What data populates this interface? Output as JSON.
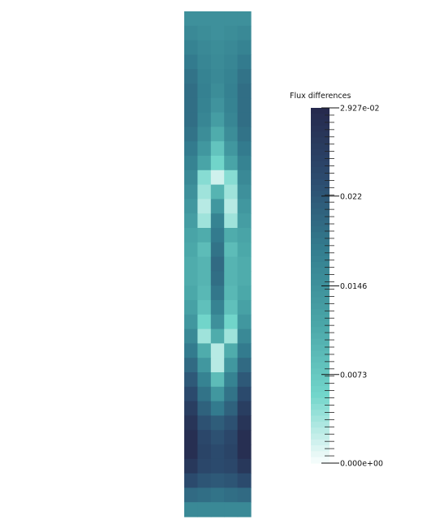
{
  "chart_data": {
    "type": "heatmap",
    "title": "",
    "colorbar": {
      "title": "Flux differences",
      "range": [
        0.0,
        0.02927
      ],
      "tick_labels": [
        "2.927e-02",
        "0.022",
        "0.0146",
        "0.0073",
        "0.000e+00"
      ],
      "tick_values": [
        0.02927,
        0.022,
        0.0146,
        0.0073,
        0.0
      ],
      "colors": [
        "#ffffff",
        "#72d6cb",
        "#4aa6a8",
        "#347f90",
        "#2c4d70",
        "#262a4e"
      ]
    },
    "grid": {
      "rows": 35,
      "cols": 5
    },
    "field_note": "values symmetric about center column; rows top to bottom",
    "values": [
      [
        0.015,
        0.015,
        0.015,
        0.015,
        0.015
      ],
      [
        0.016,
        0.0155,
        0.015,
        0.0155,
        0.016
      ],
      [
        0.017,
        0.016,
        0.0155,
        0.016,
        0.017
      ],
      [
        0.018,
        0.0165,
        0.0158,
        0.0165,
        0.018
      ],
      [
        0.019,
        0.017,
        0.016,
        0.017,
        0.019
      ],
      [
        0.0195,
        0.0172,
        0.0155,
        0.0172,
        0.0195
      ],
      [
        0.0195,
        0.017,
        0.0145,
        0.017,
        0.0195
      ],
      [
        0.0195,
        0.0165,
        0.013,
        0.0165,
        0.0195
      ],
      [
        0.019,
        0.0155,
        0.011,
        0.0155,
        0.019
      ],
      [
        0.018,
        0.014,
        0.008,
        0.014,
        0.018
      ],
      [
        0.017,
        0.012,
        0.006,
        0.012,
        0.017
      ],
      [
        0.016,
        0.005,
        0.002,
        0.005,
        0.016
      ],
      [
        0.015,
        0.004,
        0.01,
        0.004,
        0.015
      ],
      [
        0.014,
        0.003,
        0.014,
        0.003,
        0.014
      ],
      [
        0.013,
        0.004,
        0.017,
        0.004,
        0.013
      ],
      [
        0.012,
        0.011,
        0.018,
        0.011,
        0.012
      ],
      [
        0.0115,
        0.009,
        0.019,
        0.009,
        0.0115
      ],
      [
        0.011,
        0.01,
        0.02,
        0.01,
        0.011
      ],
      [
        0.011,
        0.01,
        0.0195,
        0.01,
        0.011
      ],
      [
        0.0115,
        0.0095,
        0.0185,
        0.0095,
        0.0115
      ],
      [
        0.0125,
        0.0085,
        0.017,
        0.0085,
        0.0125
      ],
      [
        0.014,
        0.006,
        0.015,
        0.006,
        0.014
      ],
      [
        0.016,
        0.004,
        0.011,
        0.004,
        0.016
      ],
      [
        0.018,
        0.011,
        0.003,
        0.011,
        0.018
      ],
      [
        0.02,
        0.014,
        0.003,
        0.014,
        0.02
      ],
      [
        0.022,
        0.017,
        0.009,
        0.017,
        0.022
      ],
      [
        0.024,
        0.019,
        0.014,
        0.019,
        0.024
      ],
      [
        0.026,
        0.021,
        0.018,
        0.021,
        0.026
      ],
      [
        0.0275,
        0.023,
        0.0215,
        0.023,
        0.0275
      ],
      [
        0.0285,
        0.0245,
        0.023,
        0.0245,
        0.0285
      ],
      [
        0.0285,
        0.025,
        0.024,
        0.025,
        0.0285
      ],
      [
        0.027,
        0.0245,
        0.024,
        0.0245,
        0.027
      ],
      [
        0.024,
        0.0225,
        0.022,
        0.0225,
        0.024
      ],
      [
        0.02,
        0.0195,
        0.019,
        0.0195,
        0.02
      ],
      [
        0.016,
        0.016,
        0.016,
        0.016,
        0.016
      ]
    ]
  }
}
